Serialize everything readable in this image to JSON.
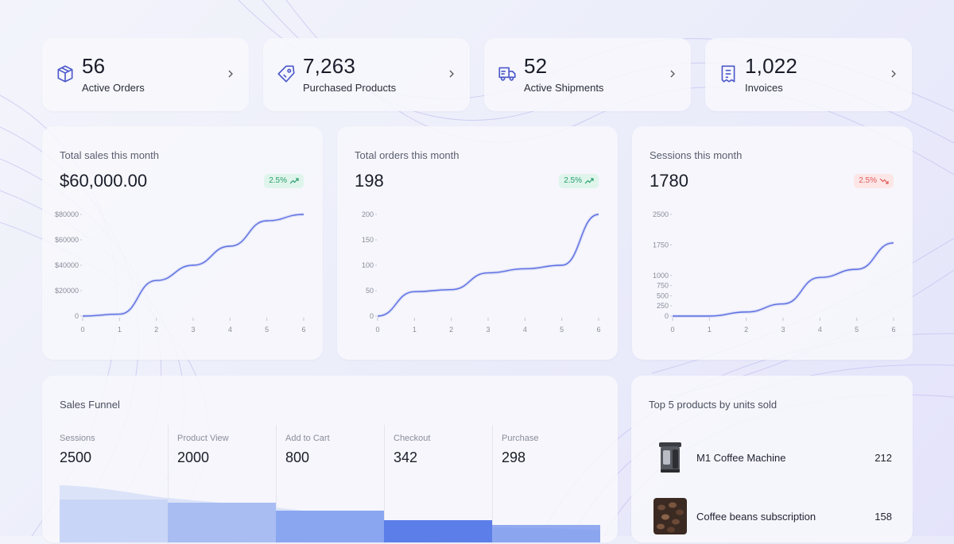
{
  "stats": [
    {
      "value": "56",
      "label": "Active Orders",
      "icon": "box-icon"
    },
    {
      "value": "7,263",
      "label": "Purchased Products",
      "icon": "tag-icon"
    },
    {
      "value": "52",
      "label": "Active Shipments",
      "icon": "truck-icon"
    },
    {
      "value": "1,022",
      "label": "Invoices",
      "icon": "receipt-icon"
    }
  ],
  "charts": [
    {
      "title": "Total sales this month",
      "value": "$60,000.00",
      "trend": "2.5%",
      "trend_direction": "up"
    },
    {
      "title": "Total orders this month",
      "value": "198",
      "trend": "2.5%",
      "trend_direction": "up"
    },
    {
      "title": "Sessions this month",
      "value": "1780",
      "trend": "2.5%",
      "trend_direction": "down"
    }
  ],
  "chart_data": [
    {
      "type": "line",
      "x": [
        0,
        1,
        2,
        3,
        4,
        5,
        6
      ],
      "series": [
        {
          "values": [
            0,
            1500,
            28000,
            40000,
            55000,
            75000,
            80000
          ]
        }
      ],
      "yticks": [
        0,
        20000,
        40000,
        60000,
        80000
      ],
      "ytick_labels": [
        "0",
        "$20000",
        "$40000",
        "$60000",
        "$80000"
      ],
      "xticks": [
        "0",
        "1",
        "2",
        "3",
        "4",
        "5",
        "6"
      ],
      "ylim": [
        0,
        80000
      ],
      "xlim": [
        0,
        6
      ],
      "color": "#5b6ee1"
    },
    {
      "type": "line",
      "x": [
        0,
        1,
        2,
        3,
        4,
        5,
        6
      ],
      "series": [
        {
          "values": [
            0,
            48,
            52,
            85,
            93,
            100,
            200
          ]
        }
      ],
      "yticks": [
        0,
        50,
        100,
        150,
        200
      ],
      "ytick_labels": [
        "0",
        "50",
        "100",
        "150",
        "200"
      ],
      "xticks": [
        "0",
        "1",
        "2",
        "3",
        "4",
        "5",
        "6"
      ],
      "ylim": [
        0,
        200
      ],
      "xlim": [
        0,
        6
      ],
      "color": "#5b6ee1"
    },
    {
      "type": "line",
      "x": [
        0,
        1,
        2,
        3,
        4,
        5,
        6
      ],
      "series": [
        {
          "values": [
            0,
            0,
            100,
            300,
            950,
            1150,
            1800
          ]
        }
      ],
      "yticks": [
        0,
        250,
        500,
        750,
        1000,
        1750,
        2500
      ],
      "ytick_labels": [
        "0",
        "250",
        "500",
        "750",
        "1000",
        "1750",
        "2500"
      ],
      "xticks": [
        "0",
        "1",
        "2",
        "3",
        "4",
        "5",
        "6"
      ],
      "ylim": [
        0,
        2500
      ],
      "xlim": [
        0,
        6
      ],
      "color": "#5b6ee1"
    }
  ],
  "funnel": {
    "title": "Sales Funnel",
    "stages": [
      {
        "label": "Sessions",
        "value": "2500"
      },
      {
        "label": "Product View",
        "value": "2000"
      },
      {
        "label": "Add to Cart",
        "value": "800"
      },
      {
        "label": "Checkout",
        "value": "342"
      },
      {
        "label": "Purchase",
        "value": "298"
      }
    ]
  },
  "products": {
    "title": "Top 5 products by units sold",
    "items": [
      {
        "name": "M1 Coffee Machine",
        "units": "212"
      },
      {
        "name": "Coffee beans subscription",
        "units": "158"
      }
    ]
  },
  "colors": {
    "accent": "#5b6ee1",
    "up": "#2a9d6c",
    "down": "#e15a5a"
  }
}
